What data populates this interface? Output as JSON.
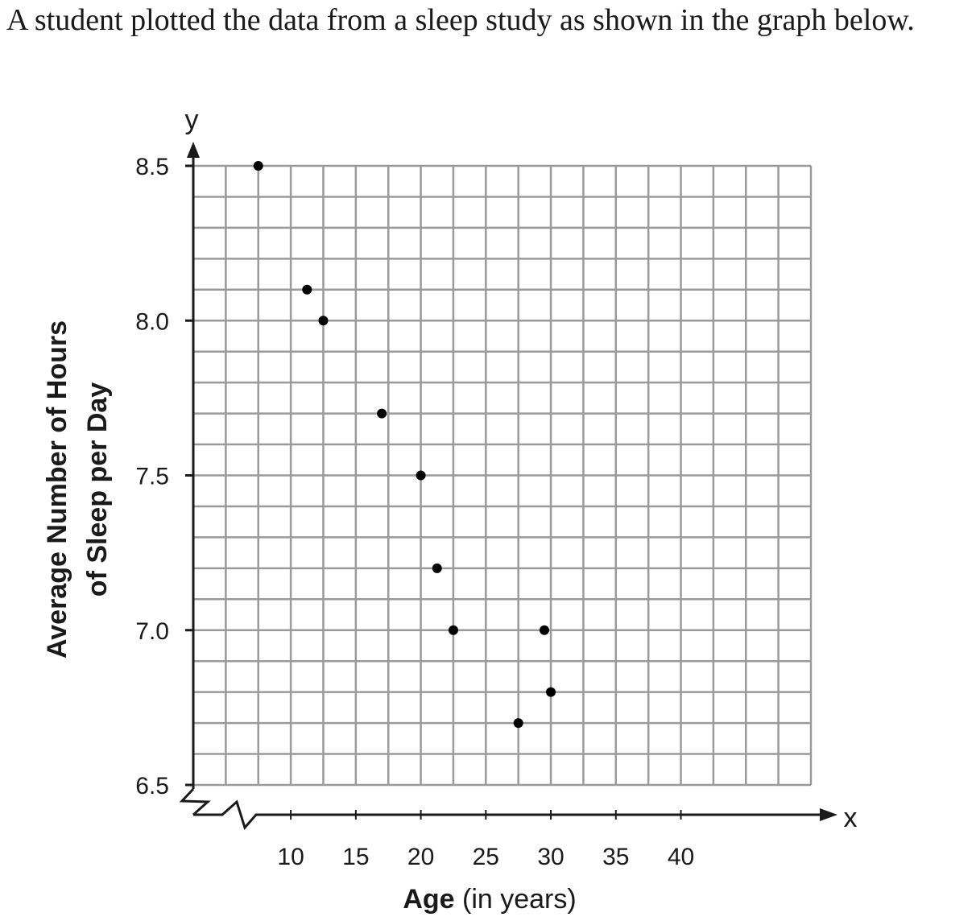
{
  "intro_text": "A student plotted the data from a sleep study as shown in the graph below.",
  "chart_data": {
    "type": "scatter",
    "title": "",
    "x_axis": {
      "letter": "x",
      "label_bold": "Age",
      "label_rest": " (in years)",
      "range": [
        2.5,
        50
      ],
      "ticks": [
        10,
        15,
        20,
        25,
        30,
        35,
        40
      ],
      "tick_labels": [
        "10",
        "15",
        "20",
        "25",
        "30",
        "35",
        "40"
      ],
      "grid_step": 2.5,
      "axis_break": true
    },
    "y_axis": {
      "letter": "y",
      "label_line1": "Average Number of Hours",
      "label_line2": "of Sleep per Day",
      "range": [
        6.5,
        8.5
      ],
      "ticks": [
        6.5,
        7.0,
        7.5,
        8.0,
        8.5
      ],
      "tick_labels": [
        "6.5",
        "7.0",
        "7.5",
        "8.0",
        "8.5"
      ],
      "grid_step": 0.1,
      "axis_break": true
    },
    "points": [
      {
        "x": 7.5,
        "y": 8.5
      },
      {
        "x": 11.25,
        "y": 8.1
      },
      {
        "x": 12.5,
        "y": 8.0
      },
      {
        "x": 17,
        "y": 7.7
      },
      {
        "x": 20,
        "y": 7.5
      },
      {
        "x": 21.25,
        "y": 7.2
      },
      {
        "x": 22.5,
        "y": 7.0
      },
      {
        "x": 27.5,
        "y": 6.7
      },
      {
        "x": 29.5,
        "y": 7.0
      },
      {
        "x": 30,
        "y": 6.8
      }
    ],
    "grid": true,
    "colors": {
      "grid": "#9a9a9a",
      "axis": "#1a1a1a",
      "point": "#000000"
    }
  }
}
